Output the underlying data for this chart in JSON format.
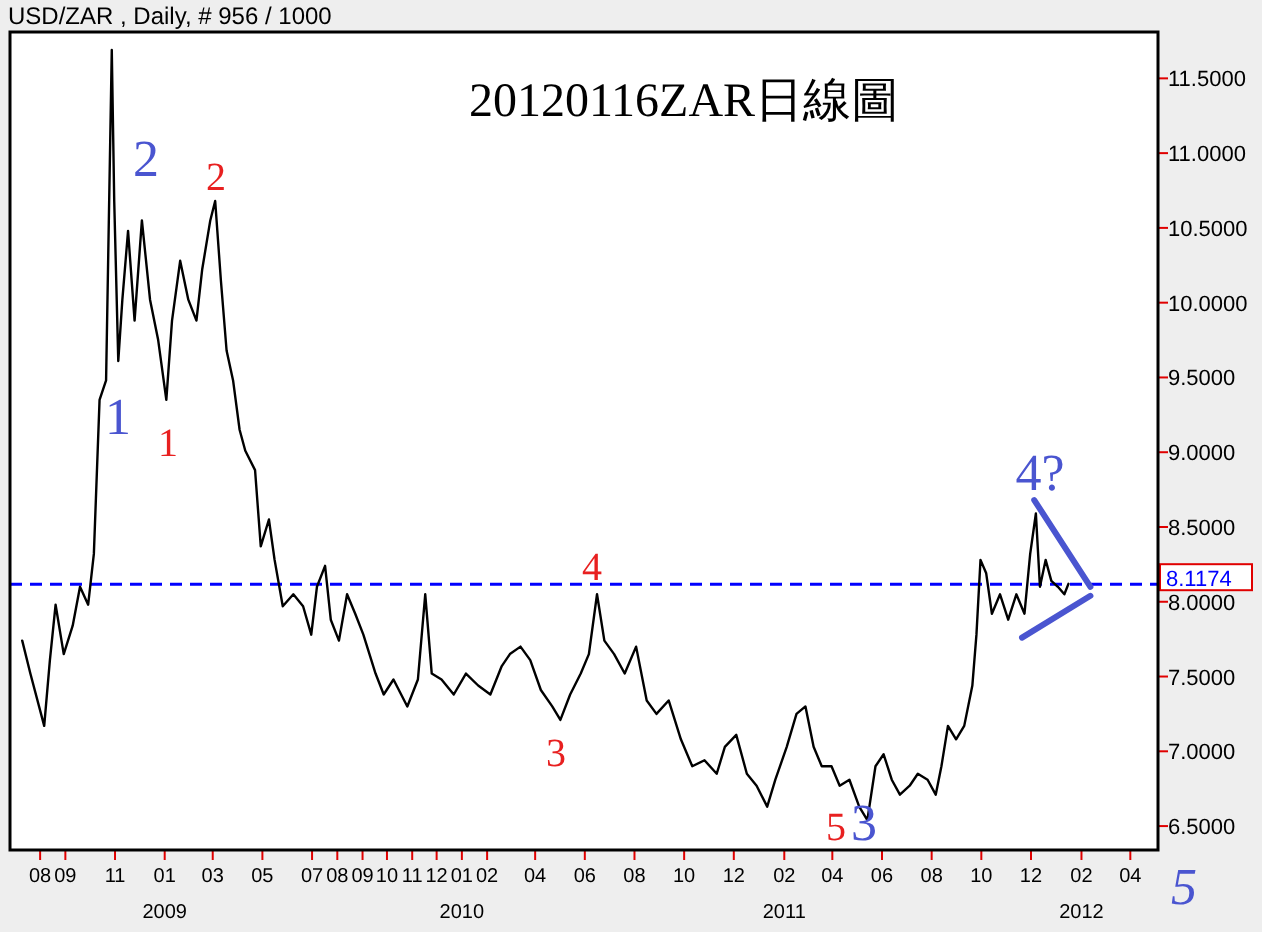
{
  "chart_data": {
    "type": "line",
    "title": "20120116ZAR日線圖",
    "subtitle": "USD/ZAR , Daily, # 956 / 1000",
    "xlim": [
      "2008-06-25",
      "2012-05-05"
    ],
    "ylim": [
      6.34,
      11.81
    ],
    "xticks": [
      {
        "value": "2008-08",
        "label": "08"
      },
      {
        "value": "2008-09",
        "label": "09"
      },
      {
        "value": "2008-11",
        "label": "11"
      },
      {
        "value": "2009-01",
        "label": "01\n2009"
      },
      {
        "value": "2009-03",
        "label": "03"
      },
      {
        "value": "2009-05",
        "label": "05"
      },
      {
        "value": "2009-07",
        "label": "07"
      },
      {
        "value": "2009-08",
        "label": "08"
      },
      {
        "value": "2009-09",
        "label": "09"
      },
      {
        "value": "2009-10",
        "label": "10"
      },
      {
        "value": "2009-11",
        "label": "11"
      },
      {
        "value": "2009-12",
        "label": "12"
      },
      {
        "value": "2010-01",
        "label": "01\n2010"
      },
      {
        "value": "2010-02",
        "label": "02"
      },
      {
        "value": "2010-04",
        "label": "04"
      },
      {
        "value": "2010-06",
        "label": "06"
      },
      {
        "value": "2010-08",
        "label": "08"
      },
      {
        "value": "2010-10",
        "label": "10"
      },
      {
        "value": "2010-12",
        "label": "12"
      },
      {
        "value": "2011-02",
        "label": "02\n2011"
      },
      {
        "value": "2011-04",
        "label": "04"
      },
      {
        "value": "2011-06",
        "label": "06"
      },
      {
        "value": "2011-08",
        "label": "08"
      },
      {
        "value": "2011-10",
        "label": "10"
      },
      {
        "value": "2011-12",
        "label": "12"
      },
      {
        "value": "2012-02",
        "label": "02\n2012"
      },
      {
        "value": "2012-04",
        "label": "04"
      }
    ],
    "yticks": [
      {
        "value": 6.5,
        "label": "6.5000"
      },
      {
        "value": 7,
        "label": "7.0000"
      },
      {
        "value": 7.5,
        "label": "7.5000"
      },
      {
        "value": 8,
        "label": "8.0000"
      },
      {
        "value": 8.5,
        "label": "8.5000"
      },
      {
        "value": 9,
        "label": "9.0000"
      },
      {
        "value": 9.5,
        "label": "9.5000"
      },
      {
        "value": 10,
        "label": "10.0000"
      },
      {
        "value": 10.5,
        "label": "10.5000"
      },
      {
        "value": 11,
        "label": "11.0000"
      },
      {
        "value": 11.5,
        "label": "11.5000"
      }
    ],
    "grid": false,
    "series": [
      {
        "color": "#000000",
        "x": [
          "2008-07-10",
          "2008-07-20",
          "2008-08-06",
          "2008-08-13",
          "2008-08-20",
          "2008-08-30",
          "2008-09-10",
          "2008-09-19",
          "2008-09-29",
          "2008-10-06",
          "2008-10-13",
          "2008-10-21",
          "2008-10-28",
          "2008-10-31",
          "2008-11-05",
          "2008-11-10",
          "2008-11-17",
          "2008-11-25",
          "2008-12-04",
          "2008-12-14",
          "2008-12-24",
          "2009-01-03",
          "2009-01-10",
          "2009-01-20",
          "2009-01-30",
          "2009-02-09",
          "2009-02-16",
          "2009-02-26",
          "2009-03-04",
          "2009-03-11",
          "2009-03-18",
          "2009-03-26",
          "2009-04-03",
          "2009-04-10",
          "2009-04-22",
          "2009-04-29",
          "2009-05-09",
          "2009-05-16",
          "2009-05-26",
          "2009-06-08",
          "2009-06-20",
          "2009-06-30",
          "2009-07-07",
          "2009-07-17",
          "2009-07-24",
          "2009-08-03",
          "2009-08-13",
          "2009-08-23",
          "2009-09-02",
          "2009-09-17",
          "2009-09-27",
          "2009-10-09",
          "2009-10-26",
          "2009-11-08",
          "2009-11-17",
          "2009-11-25",
          "2009-12-07",
          "2009-12-22",
          "2010-01-06",
          "2010-01-21",
          "2010-02-05",
          "2010-02-19",
          "2010-03-01",
          "2010-03-14",
          "2010-03-26",
          "2010-04-08",
          "2010-04-22",
          "2010-05-02",
          "2010-05-14",
          "2010-05-27",
          "2010-06-06",
          "2010-06-16",
          "2010-06-25",
          "2010-07-07",
          "2010-07-20",
          "2010-08-03",
          "2010-08-16",
          "2010-08-28",
          "2010-09-12",
          "2010-09-27",
          "2010-10-11",
          "2010-10-26",
          "2010-11-10",
          "2010-11-20",
          "2010-12-04",
          "2010-12-17",
          "2010-12-29",
          "2011-01-11",
          "2011-01-21",
          "2011-02-04",
          "2011-02-16",
          "2011-02-27",
          "2011-03-09",
          "2011-03-19",
          "2011-03-31",
          "2011-04-10",
          "2011-04-22",
          "2011-05-04",
          "2011-05-14",
          "2011-05-24",
          "2011-06-03",
          "2011-06-13",
          "2011-06-23",
          "2011-07-05",
          "2011-07-15",
          "2011-07-27",
          "2011-08-06",
          "2011-08-13",
          "2011-08-21",
          "2011-08-31",
          "2011-09-10",
          "2011-09-20",
          "2011-09-25",
          "2011-09-30",
          "2011-10-07",
          "2011-10-14",
          "2011-10-24",
          "2011-11-03",
          "2011-11-13",
          "2011-11-23",
          "2011-11-30",
          "2011-12-07",
          "2011-12-12",
          "2011-12-19",
          "2011-12-26",
          "2012-01-03",
          "2012-01-11",
          "2012-01-16"
        ],
        "values": [
          7.74,
          7.52,
          7.17,
          7.61,
          7.98,
          7.65,
          7.84,
          8.1,
          7.98,
          8.32,
          9.35,
          9.48,
          11.69,
          10.68,
          9.61,
          10.02,
          10.48,
          9.88,
          10.55,
          10.02,
          9.75,
          9.35,
          9.88,
          10.28,
          10.02,
          9.88,
          10.22,
          10.55,
          10.68,
          10.15,
          9.68,
          9.48,
          9.15,
          9.01,
          8.88,
          8.37,
          8.55,
          8.28,
          7.97,
          8.05,
          7.97,
          7.78,
          8.1,
          8.24,
          7.88,
          7.74,
          8.05,
          7.92,
          7.78,
          7.52,
          7.38,
          7.48,
          7.3,
          7.48,
          8.05,
          7.52,
          7.48,
          7.38,
          7.52,
          7.44,
          7.38,
          7.57,
          7.65,
          7.7,
          7.61,
          7.41,
          7.3,
          7.21,
          7.38,
          7.52,
          7.65,
          8.05,
          7.74,
          7.65,
          7.52,
          7.7,
          7.34,
          7.25,
          7.34,
          7.08,
          6.9,
          6.94,
          6.85,
          7.03,
          7.11,
          6.85,
          6.77,
          6.63,
          6.81,
          7.03,
          7.25,
          7.3,
          7.03,
          6.9,
          6.9,
          6.77,
          6.81,
          6.63,
          6.54,
          6.9,
          6.98,
          6.81,
          6.71,
          6.77,
          6.85,
          6.81,
          6.71,
          6.9,
          7.17,
          7.08,
          7.17,
          7.44,
          7.78,
          8.28,
          8.19,
          7.92,
          8.05,
          7.88,
          8.05,
          7.92,
          8.32,
          8.59,
          8.1,
          8.28,
          8.14,
          8.1,
          8.05,
          8.12
        ]
      },
      {
        "color": "#4a55d0",
        "x": [
          "2011-12-05",
          "2012-02-12"
        ],
        "values": [
          8.68,
          8.1
        ]
      },
      {
        "color": "#4a55d0",
        "x": [
          "2011-11-20",
          "2012-02-12"
        ],
        "values": [
          7.76,
          8.04
        ]
      }
    ],
    "ref_lines": [
      {
        "axis": "y",
        "value": 8.1174,
        "label": "8.1174",
        "color": "#0000ff",
        "line_style": "dashed"
      }
    ],
    "annotations": [
      "1",
      "2",
      "1",
      "2",
      "3",
      "4",
      "5",
      "3",
      "4?",
      "5"
    ]
  }
}
